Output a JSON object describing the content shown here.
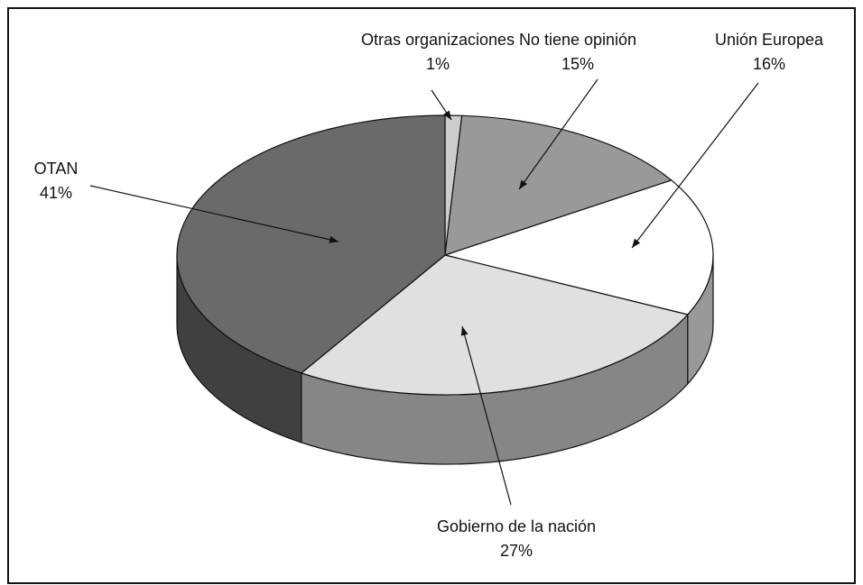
{
  "chart_data": {
    "type": "pie",
    "categories": [
      "Otras organizaciones",
      "No tiene opinión",
      "Unión Europea",
      "Gobierno de la nación",
      "OTAN"
    ],
    "values": [
      1,
      15,
      16,
      27,
      41
    ],
    "value_labels": [
      "1%",
      "15%",
      "16%",
      "27%",
      "41%"
    ],
    "colors": [
      "#cccccc",
      "#999999",
      "#ffffff",
      "#e0e0e0",
      "#6a6a6a"
    ]
  }
}
